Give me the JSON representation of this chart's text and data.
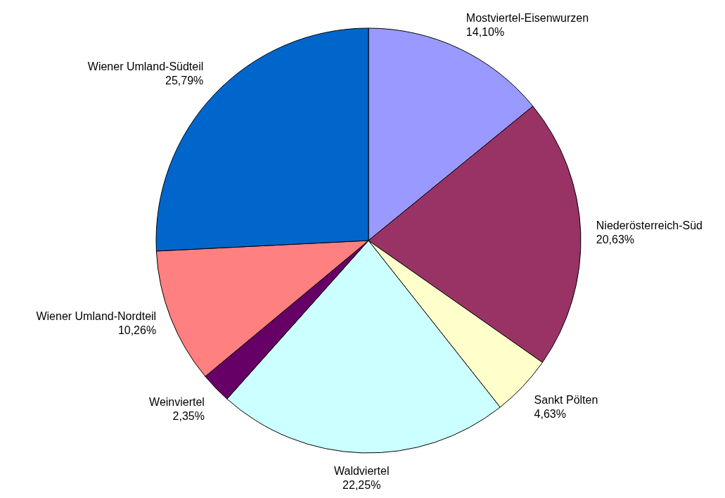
{
  "chart_data": {
    "type": "pie",
    "categories": [
      "Mostviertel-Eisenwurzen",
      "Niederösterreich-Süd",
      "Sankt Pölten",
      "Waldviertel",
      "Weinviertel",
      "Wiener Umland-Nordteil",
      "Wiener Umland-Südteil"
    ],
    "values": [
      14.1,
      20.63,
      4.63,
      22.25,
      2.35,
      10.26,
      25.79
    ],
    "value_labels": [
      "14,10%",
      "20,63%",
      "4,63%",
      "22,25%",
      "2,35%",
      "10,26%",
      "25,79%"
    ],
    "colors": [
      "#9999ff",
      "#993366",
      "#ffffcc",
      "#ccffff",
      "#660066",
      "#ff8080",
      "#0066cc"
    ]
  }
}
